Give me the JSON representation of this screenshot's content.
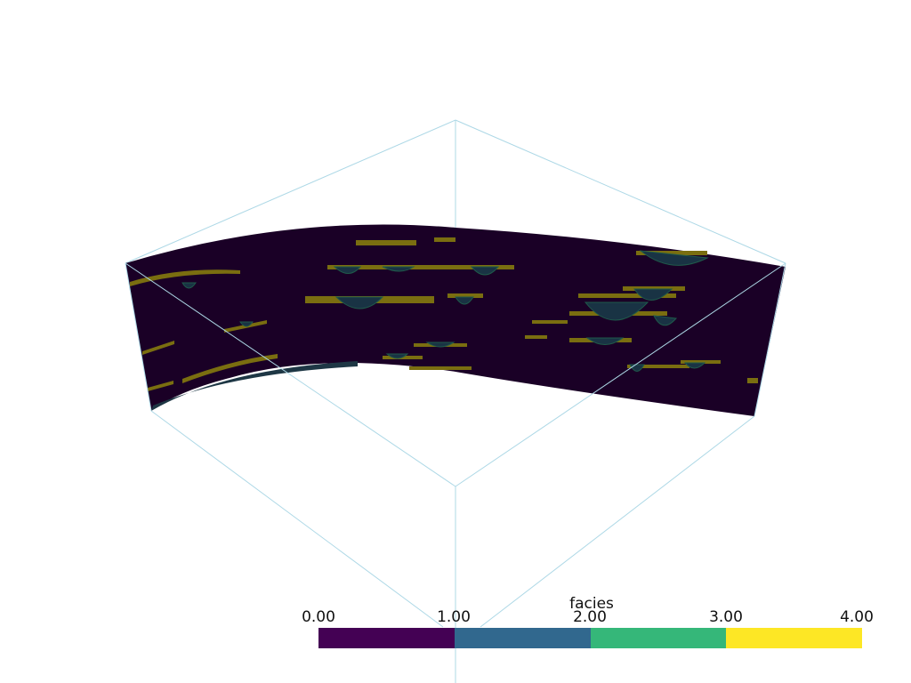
{
  "scene": {
    "slab_color": "#1a0026",
    "box_color": "#add8e6"
  },
  "colorbar": {
    "title": "facies",
    "ticks": [
      "0.00",
      "1.00",
      "2.00",
      "3.00",
      "4.00"
    ],
    "range": [
      0,
      4
    ],
    "bins": [
      {
        "value": "0-1",
        "color": "#440154"
      },
      {
        "value": "1-2",
        "color": "#31688e"
      },
      {
        "value": "2-3",
        "color": "#35b779"
      },
      {
        "value": "3-4",
        "color": "#fde725"
      }
    ]
  }
}
